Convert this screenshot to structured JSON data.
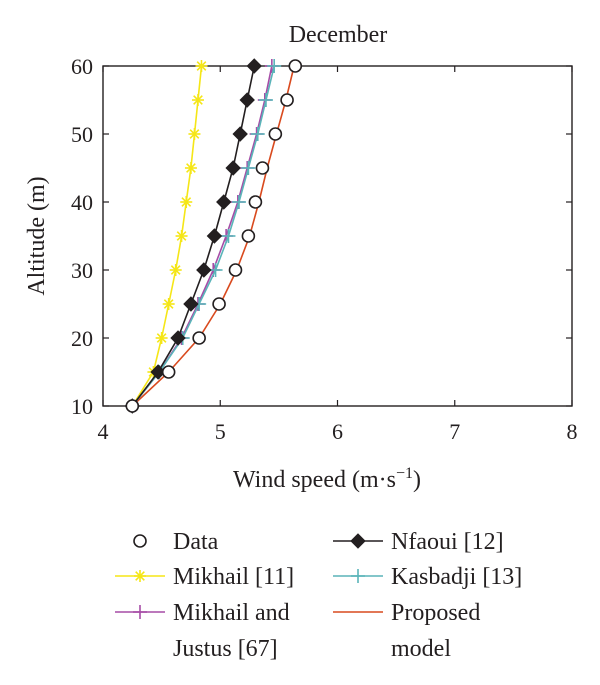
{
  "chart_data": {
    "type": "line",
    "title": "December",
    "xlabel": "Wind speed (m·s",
    "xlabel_sup": "−1",
    "xlabel_close": ")",
    "ylabel": "Altitude (m)",
    "xlim": [
      4,
      8
    ],
    "ylim": [
      10,
      60
    ],
    "x_ticks": [
      "4",
      "5",
      "6",
      "7",
      "8"
    ],
    "y_ticks": [
      "10",
      "20",
      "30",
      "40",
      "50",
      "60"
    ],
    "grid": false,
    "legend_position": "bottom",
    "series": [
      {
        "name": "Data",
        "marker": "circle",
        "line": false,
        "color": "#231f20",
        "points": [
          [
            4.25,
            10
          ],
          [
            4.56,
            15
          ],
          [
            4.82,
            20
          ],
          [
            4.99,
            25
          ],
          [
            5.13,
            30
          ],
          [
            5.24,
            35
          ],
          [
            5.3,
            40
          ],
          [
            5.36,
            45
          ],
          [
            5.47,
            50
          ],
          [
            5.57,
            55
          ],
          [
            5.64,
            60
          ]
        ]
      },
      {
        "name": "Mikhail [11]",
        "marker": "asterisk",
        "line": true,
        "color": "#f5e617",
        "points": [
          [
            4.25,
            10
          ],
          [
            4.43,
            15
          ],
          [
            4.5,
            20
          ],
          [
            4.56,
            25
          ],
          [
            4.62,
            30
          ],
          [
            4.67,
            35
          ],
          [
            4.71,
            40
          ],
          [
            4.75,
            45
          ],
          [
            4.78,
            50
          ],
          [
            4.81,
            55
          ],
          [
            4.84,
            60
          ]
        ]
      },
      {
        "name": "Nfaoui [12]",
        "marker": "diamond",
        "line": true,
        "color": "#231f20",
        "points": [
          [
            4.25,
            10
          ],
          [
            4.47,
            15
          ],
          [
            4.64,
            20
          ],
          [
            4.75,
            25
          ],
          [
            4.86,
            30
          ],
          [
            4.95,
            35
          ],
          [
            5.03,
            40
          ],
          [
            5.11,
            45
          ],
          [
            5.17,
            50
          ],
          [
            5.23,
            55
          ],
          [
            5.29,
            60
          ]
        ]
      },
      {
        "name": "Kasbadji [13]",
        "marker": "plus",
        "line": true,
        "color": "#5ab4b9",
        "points": [
          [
            4.25,
            10
          ],
          [
            4.48,
            15
          ],
          [
            4.68,
            20
          ],
          [
            4.82,
            25
          ],
          [
            4.96,
            30
          ],
          [
            5.07,
            35
          ],
          [
            5.16,
            40
          ],
          [
            5.24,
            45
          ],
          [
            5.32,
            50
          ],
          [
            5.39,
            55
          ],
          [
            5.46,
            60
          ]
        ]
      },
      {
        "name": "Mikhail and Justus [67]",
        "marker": "plus",
        "line": true,
        "color": "#a64ca6",
        "points": [
          [
            4.25,
            10
          ],
          [
            4.48,
            15
          ],
          [
            4.67,
            20
          ],
          [
            4.81,
            25
          ],
          [
            4.94,
            30
          ],
          [
            5.05,
            35
          ],
          [
            5.15,
            40
          ],
          [
            5.23,
            45
          ],
          [
            5.31,
            50
          ],
          [
            5.38,
            55
          ],
          [
            5.44,
            60
          ]
        ]
      },
      {
        "name": "Proposed model",
        "marker": "none",
        "line": true,
        "color": "#d94a1e",
        "points": [
          [
            4.25,
            10
          ],
          [
            4.56,
            15
          ],
          [
            4.82,
            20
          ],
          [
            5.0,
            25
          ],
          [
            5.14,
            30
          ],
          [
            5.25,
            35
          ],
          [
            5.33,
            40
          ],
          [
            5.4,
            45
          ],
          [
            5.48,
            50
          ],
          [
            5.56,
            55
          ],
          [
            5.63,
            60
          ]
        ]
      }
    ]
  },
  "legend": [
    {
      "key": "data",
      "marker": "circle",
      "line": false,
      "color": "#231f20",
      "lines": [
        "Data"
      ]
    },
    {
      "key": "nfaoui",
      "marker": "diamond",
      "line": true,
      "color": "#231f20",
      "lines": [
        "Nfaoui [12]"
      ]
    },
    {
      "key": "mikhail",
      "marker": "asterisk",
      "line": true,
      "color": "#f5e617",
      "lines": [
        "Mikhail [11]"
      ]
    },
    {
      "key": "kasbadji",
      "marker": "plus",
      "line": true,
      "color": "#5ab4b9",
      "lines": [
        "Kasbadji [13]"
      ]
    },
    {
      "key": "mikhail-justus",
      "marker": "plus",
      "line": true,
      "color": "#a64ca6",
      "lines": [
        "Mikhail and",
        "Justus [67]"
      ]
    },
    {
      "key": "proposed",
      "marker": "none",
      "line": true,
      "color": "#d94a1e",
      "lines": [
        "Proposed",
        "model"
      ]
    }
  ]
}
